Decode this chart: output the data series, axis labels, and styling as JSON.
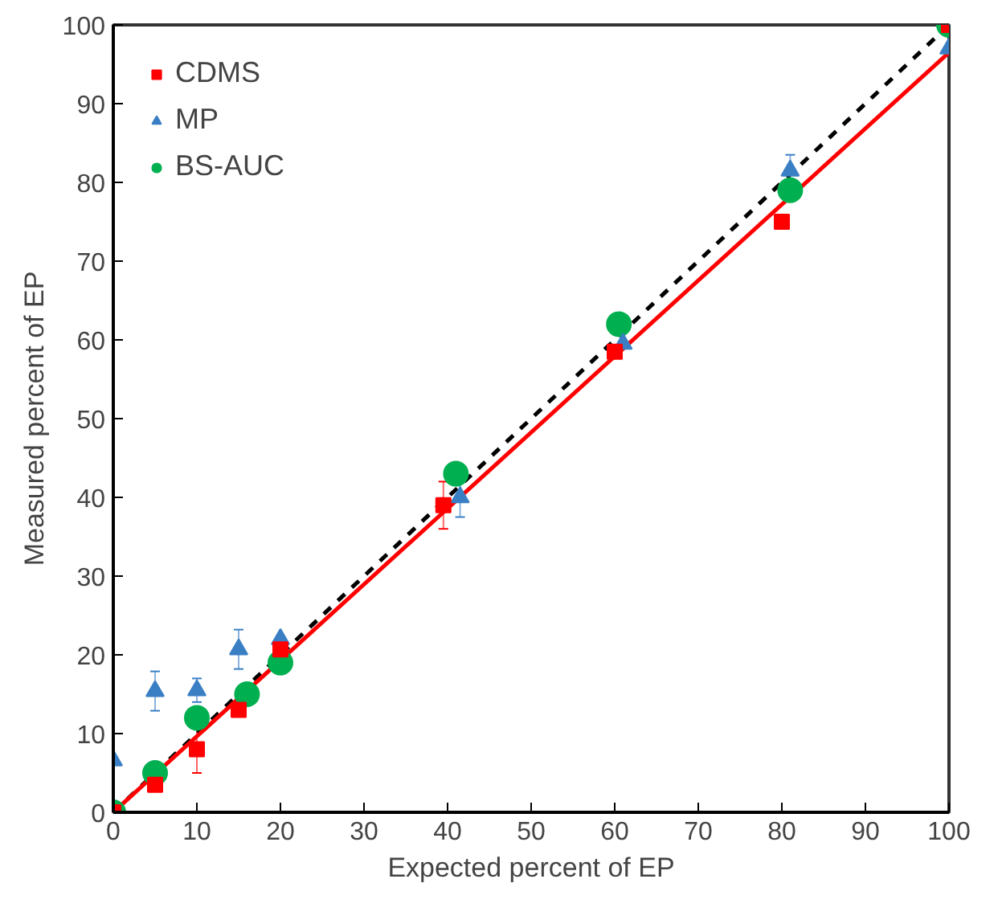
{
  "chart_data": {
    "type": "scatter",
    "xlabel": "Expected percent of EP",
    "ylabel": "Measured percent of EP",
    "xlim": [
      0,
      100
    ],
    "ylim": [
      0,
      100
    ],
    "xticks": [
      0,
      10,
      20,
      30,
      40,
      50,
      60,
      70,
      80,
      90,
      100
    ],
    "yticks": [
      0,
      10,
      20,
      30,
      40,
      50,
      60,
      70,
      80,
      90,
      100
    ],
    "grid": false,
    "legend": "top left",
    "series": [
      {
        "name": "CDMS",
        "color": "#ff0000",
        "marker": "square",
        "x": [
          0,
          5,
          10,
          15,
          20,
          39.5,
          60,
          80,
          100
        ],
        "values": [
          0,
          3.5,
          8,
          13,
          20.7,
          39,
          58.5,
          75,
          100
        ],
        "errors": [
          null,
          null,
          3,
          null,
          null,
          3,
          null,
          null,
          null
        ]
      },
      {
        "name": "MP",
        "color": "#3a7fc4",
        "marker": "triangle",
        "x": [
          0,
          5,
          10,
          15,
          20,
          41.5,
          61,
          81,
          100
        ],
        "values": [
          6.6,
          15.4,
          15.5,
          20.7,
          22,
          40,
          59.5,
          81.5,
          97
        ],
        "errors": [
          null,
          2.5,
          1.5,
          2.5,
          null,
          2.5,
          null,
          2,
          null
        ]
      },
      {
        "name": "BS-AUC",
        "color": "#00b050",
        "marker": "circle",
        "x": [
          0,
          5,
          10,
          16,
          20,
          41,
          60.5,
          81,
          100
        ],
        "values": [
          0,
          5,
          12,
          15,
          19,
          43,
          62,
          79,
          100
        ]
      },
      {
        "type": "line",
        "color": "#000000",
        "line_style": "dashed",
        "x": [
          0,
          100
        ],
        "values": [
          0,
          100
        ]
      },
      {
        "type": "line",
        "color": "#ff0000",
        "line_style": "solid",
        "x": [
          0,
          100
        ],
        "values": [
          0,
          96.5
        ]
      }
    ]
  }
}
